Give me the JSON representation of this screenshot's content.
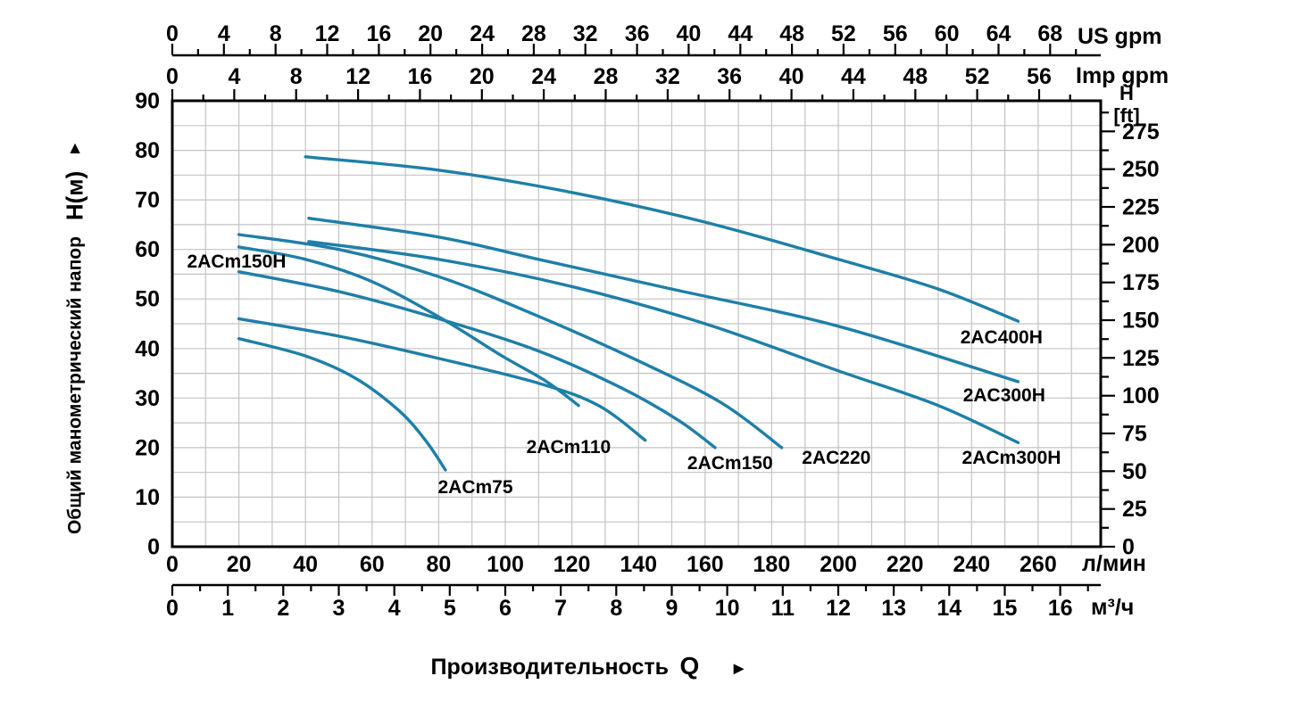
{
  "chart_data": {
    "type": "line",
    "xlabel": "Производительность",
    "xlabel_symbol": "Q",
    "right_arrow": "►",
    "ylabel": "Общий манометрический напор",
    "ylabel_symbol": "H(м)",
    "up_arrow": "►",
    "colors": {
      "curve": "#1e7fa8",
      "grid": "#c3c3c3",
      "axis": "#000000",
      "background": "#ffffff"
    },
    "axes": {
      "us_gpm": {
        "name": "US gpm",
        "labels": [
          0,
          4,
          8,
          12,
          16,
          20,
          24,
          28,
          32,
          36,
          40,
          44,
          48,
          52,
          56,
          60,
          64,
          68
        ],
        "tick_minor_step": 2,
        "tick_max": 70,
        "scale_max": 71.92
      },
      "imp_gpm": {
        "name": "Imp gpm",
        "labels": [
          0,
          4,
          8,
          12,
          16,
          20,
          24,
          28,
          32,
          36,
          40,
          44,
          48,
          52,
          56
        ],
        "tick_minor_step": 2,
        "tick_max": 58,
        "scale_max": 59.98
      },
      "l_min": {
        "name": "л/мин",
        "labels": [
          0,
          20,
          40,
          60,
          80,
          100,
          120,
          140,
          160,
          180,
          200,
          220,
          240,
          260
        ],
        "grid_step": 10,
        "grid_max": 270,
        "scale_max": 278.8
      },
      "m3_h": {
        "name": "м³/ч",
        "labels": [
          0,
          1,
          2,
          3,
          4,
          5,
          6,
          7,
          8,
          9,
          10,
          11,
          12,
          13,
          14,
          15,
          16
        ],
        "tick_minor_step": 0.5,
        "tick_max": 16.5,
        "scale_max": 16.73
      },
      "h_m": {
        "labels": [
          0,
          10,
          20,
          30,
          40,
          50,
          60,
          70,
          80,
          90
        ],
        "grid_step": 5,
        "grid_max": 85,
        "scale_max": 90
      },
      "h_ft": {
        "name": "H",
        "unit": "[ft]",
        "labels": [
          0,
          25,
          50,
          75,
          100,
          125,
          150,
          175,
          200,
          225,
          250,
          275
        ],
        "tick_minor_step": 12.5,
        "tick_max": 287.5,
        "scale_max": 295.28
      }
    },
    "series": [
      {
        "name": "2AC400H",
        "points": [
          [
            40,
            78.7
          ],
          [
            80,
            76
          ],
          [
            120,
            71.5
          ],
          [
            160,
            65.5
          ],
          [
            200,
            58
          ],
          [
            230,
            52
          ],
          [
            254,
            45.5
          ]
        ],
        "label_at": [
          249,
          42.3
        ]
      },
      {
        "name": "2AC300H",
        "points": [
          [
            41,
            66.3
          ],
          [
            80,
            62.5
          ],
          [
            110,
            58
          ],
          [
            150,
            52
          ],
          [
            200,
            44.5
          ],
          [
            254,
            33.3
          ]
        ],
        "label_at": [
          249.8,
          30.6
        ]
      },
      {
        "name": "2ACm300H",
        "points": [
          [
            41,
            61.6
          ],
          [
            80,
            58
          ],
          [
            120,
            52.5
          ],
          [
            160,
            45
          ],
          [
            200,
            35.5
          ],
          [
            230,
            28.5
          ],
          [
            254,
            21
          ]
        ],
        "label_at": [
          252,
          18
        ]
      },
      {
        "name": "2AC220",
        "points": [
          [
            20,
            63
          ],
          [
            50,
            60
          ],
          [
            80,
            54.5
          ],
          [
            110,
            46.5
          ],
          [
            140,
            37.5
          ],
          [
            165,
            29
          ],
          [
            183,
            20
          ]
        ],
        "label_at": [
          199.4,
          18
        ]
      },
      {
        "name": "2ACm150",
        "points": [
          [
            20,
            55.5
          ],
          [
            50,
            51.5
          ],
          [
            80,
            46
          ],
          [
            110,
            39.5
          ],
          [
            135,
            32
          ],
          [
            152,
            25.5
          ],
          [
            163,
            20
          ]
        ],
        "label_at": [
          167.5,
          16.9
        ]
      },
      {
        "name": "2ACm110",
        "points": [
          [
            20,
            46
          ],
          [
            50,
            42.5
          ],
          [
            80,
            38
          ],
          [
            110,
            33
          ],
          [
            128,
            28.5
          ],
          [
            142,
            21.5
          ]
        ],
        "label_at": [
          119,
          20.2
        ]
      },
      {
        "name": "2ACm150H",
        "points": [
          [
            20,
            60.5
          ],
          [
            40,
            58
          ],
          [
            60,
            53.5
          ],
          [
            81,
            46
          ],
          [
            99,
            38.5
          ],
          [
            112,
            33.5
          ],
          [
            122,
            28.5
          ]
        ],
        "label_at": [
          19.3,
          57.6
        ]
      },
      {
        "name": "2ACm75",
        "points": [
          [
            20,
            42
          ],
          [
            40,
            38.5
          ],
          [
            55,
            34
          ],
          [
            68,
            27.5
          ],
          [
            76,
            21.5
          ],
          [
            82,
            15.5
          ]
        ],
        "label_at": [
          91,
          12.1
        ]
      }
    ]
  }
}
